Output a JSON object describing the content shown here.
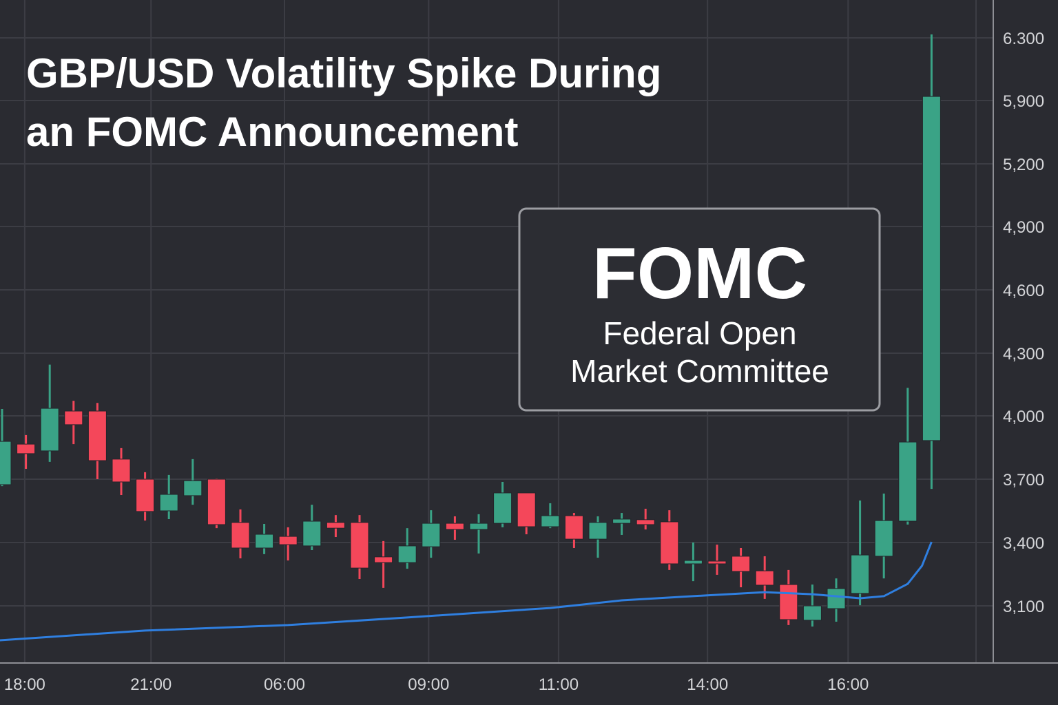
{
  "chart_data": {
    "type": "candlestick",
    "title_lines": [
      "GBP/USD Volatility Spike During",
      "an FOMC Announcement"
    ],
    "annotation": {
      "heading": "FOMC",
      "lines": [
        "Federal Open",
        "Market Committee"
      ]
    },
    "y_ticks": [
      {
        "label": "6.300",
        "value": 6300
      },
      {
        "label": "5,900",
        "value": 5900
      },
      {
        "label": "5,200",
        "value": 5200
      },
      {
        "label": "4,900",
        "value": 4900
      },
      {
        "label": "4,600",
        "value": 4600
      },
      {
        "label": "4,300",
        "value": 4300
      },
      {
        "label": "4,000",
        "value": 4000
      },
      {
        "label": "3,700",
        "value": 3700
      },
      {
        "label": "3,400",
        "value": 3400
      },
      {
        "label": "3,100",
        "value": 3100
      }
    ],
    "x_ticks": [
      {
        "label": "18:00",
        "index": 0.95
      },
      {
        "label": "21:00",
        "index": 6.25
      },
      {
        "label": "06:00",
        "index": 11.85
      },
      {
        "label": "09:00",
        "index": 17.9
      },
      {
        "label": "11:00",
        "index": 23.35
      },
      {
        "label": "14:00",
        "index": 29.6
      },
      {
        "label": "16:00",
        "index": 35.5
      }
    ],
    "grid": true,
    "colors": {
      "up": "#3aa386",
      "down": "#f4475a",
      "ma": "#2f7fe0",
      "background": "#2a2b31",
      "grid": "#3c3d44"
    },
    "candles": [
      {
        "o": 3674,
        "h": 4033,
        "l": 3667,
        "c": 3879
      },
      {
        "o": 3866,
        "h": 3909,
        "l": 3749,
        "c": 3821
      },
      {
        "o": 3834,
        "h": 4245,
        "l": 3782,
        "c": 4036
      },
      {
        "o": 4023,
        "h": 4072,
        "l": 3866,
        "c": 3958
      },
      {
        "o": 4023,
        "h": 4062,
        "l": 3700,
        "c": 3788
      },
      {
        "o": 3795,
        "h": 3847,
        "l": 3625,
        "c": 3687
      },
      {
        "o": 3700,
        "h": 3733,
        "l": 3504,
        "c": 3547
      },
      {
        "o": 3550,
        "h": 3720,
        "l": 3511,
        "c": 3628
      },
      {
        "o": 3622,
        "h": 3795,
        "l": 3579,
        "c": 3693
      },
      {
        "o": 3700,
        "h": 3703,
        "l": 3468,
        "c": 3485
      },
      {
        "o": 3495,
        "h": 3557,
        "l": 3325,
        "c": 3374
      },
      {
        "o": 3374,
        "h": 3488,
        "l": 3345,
        "c": 3439
      },
      {
        "o": 3429,
        "h": 3472,
        "l": 3315,
        "c": 3390
      },
      {
        "o": 3384,
        "h": 3579,
        "l": 3364,
        "c": 3501
      },
      {
        "o": 3495,
        "h": 3530,
        "l": 3426,
        "c": 3468
      },
      {
        "o": 3495,
        "h": 3530,
        "l": 3227,
        "c": 3279
      },
      {
        "o": 3332,
        "h": 3407,
        "l": 3185,
        "c": 3305
      },
      {
        "o": 3305,
        "h": 3468,
        "l": 3276,
        "c": 3384
      },
      {
        "o": 3380,
        "h": 3553,
        "l": 3328,
        "c": 3491
      },
      {
        "o": 3491,
        "h": 3524,
        "l": 3413,
        "c": 3462
      },
      {
        "o": 3462,
        "h": 3534,
        "l": 3348,
        "c": 3491
      },
      {
        "o": 3491,
        "h": 3687,
        "l": 3472,
        "c": 3635
      },
      {
        "o": 3635,
        "h": 3635,
        "l": 3439,
        "c": 3475
      },
      {
        "o": 3475,
        "h": 3586,
        "l": 3468,
        "c": 3527
      },
      {
        "o": 3527,
        "h": 3540,
        "l": 3374,
        "c": 3416
      },
      {
        "o": 3416,
        "h": 3524,
        "l": 3328,
        "c": 3495
      },
      {
        "o": 3491,
        "h": 3540,
        "l": 3436,
        "c": 3511
      },
      {
        "o": 3508,
        "h": 3560,
        "l": 3462,
        "c": 3485
      },
      {
        "o": 3498,
        "h": 3553,
        "l": 3270,
        "c": 3299
      },
      {
        "o": 3299,
        "h": 3400,
        "l": 3217,
        "c": 3315
      },
      {
        "o": 3312,
        "h": 3390,
        "l": 3247,
        "c": 3299
      },
      {
        "o": 3335,
        "h": 3374,
        "l": 3188,
        "c": 3263
      },
      {
        "o": 3266,
        "h": 3335,
        "l": 3133,
        "c": 3198
      },
      {
        "o": 3201,
        "h": 3270,
        "l": 3009,
        "c": 3035
      },
      {
        "o": 3032,
        "h": 3201,
        "l": 3002,
        "c": 3100
      },
      {
        "o": 3087,
        "h": 3230,
        "l": 3025,
        "c": 3182
      },
      {
        "o": 3159,
        "h": 3599,
        "l": 3103,
        "c": 3341
      },
      {
        "o": 3335,
        "h": 3632,
        "l": 3230,
        "c": 3504
      },
      {
        "o": 3501,
        "h": 4134,
        "l": 3485,
        "c": 3876
      },
      {
        "o": 3883,
        "h": 6322,
        "l": 3654,
        "c": 5926
      }
    ],
    "moving_average": [
      {
        "index": -0.1,
        "value": 2937
      },
      {
        "index": 6,
        "value": 2983
      },
      {
        "index": 12,
        "value": 3009
      },
      {
        "index": 17,
        "value": 3045
      },
      {
        "index": 23,
        "value": 3090
      },
      {
        "index": 26,
        "value": 3126
      },
      {
        "index": 29,
        "value": 3146
      },
      {
        "index": 32,
        "value": 3165
      },
      {
        "index": 34,
        "value": 3155
      },
      {
        "index": 36,
        "value": 3136
      },
      {
        "index": 37,
        "value": 3146
      },
      {
        "index": 38,
        "value": 3204
      },
      {
        "index": 38.6,
        "value": 3290
      },
      {
        "index": 39,
        "value": 3403
      }
    ]
  }
}
